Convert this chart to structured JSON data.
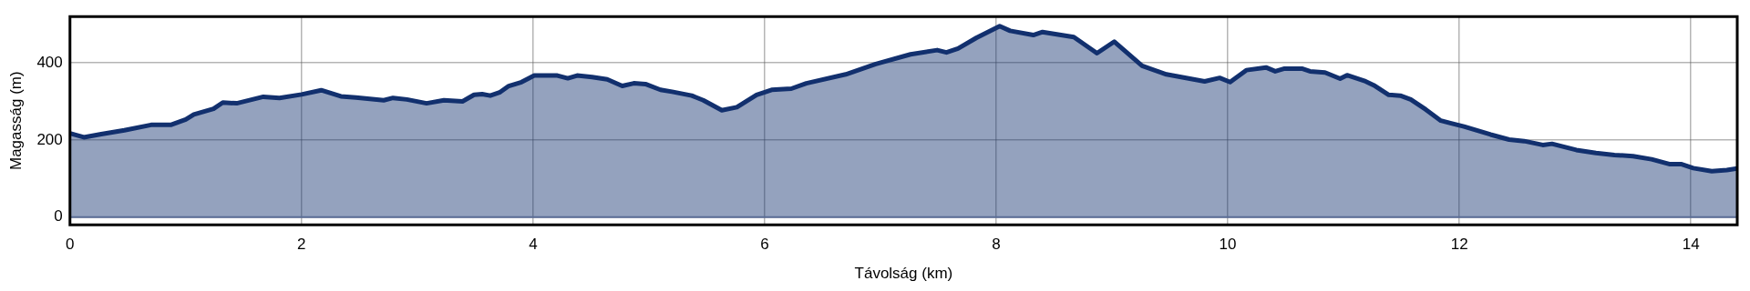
{
  "chart_data": {
    "type": "area",
    "xlabel": "Távolság (km)",
    "ylabel": "Magasság (m)",
    "xlim": [
      0,
      14.4
    ],
    "ylim": [
      -20,
      520
    ],
    "xticks": [
      0,
      2,
      4,
      6,
      8,
      10,
      12,
      14
    ],
    "yticks": [
      0,
      200,
      400
    ],
    "grid": true,
    "legend": false,
    "marker": "none",
    "line_style": "solid",
    "ref_lines": [
      {
        "axis": "y",
        "value": 0,
        "color": "#5a6d96"
      }
    ],
    "series": [
      {
        "color": "#12306e",
        "x": [
          0,
          0.12,
          0.27,
          0.47,
          0.7,
          0.87,
          1.0,
          1.07,
          1.24,
          1.32,
          1.44,
          1.67,
          1.81,
          2.0,
          2.17,
          2.34,
          2.47,
          2.71,
          2.79,
          2.91,
          3.08,
          3.23,
          3.39,
          3.49,
          3.56,
          3.63,
          3.71,
          3.79,
          3.9,
          4.01,
          4.21,
          4.3,
          4.38,
          4.51,
          4.64,
          4.77,
          4.87,
          4.97,
          5.1,
          5.2,
          5.37,
          5.47,
          5.63,
          5.76,
          5.93,
          6.06,
          6.23,
          6.36,
          6.7,
          6.96,
          7.26,
          7.49,
          7.57,
          7.67,
          7.83,
          8.03,
          8.12,
          8.32,
          8.4,
          8.67,
          8.87,
          9.02,
          9.26,
          9.47,
          9.8,
          9.93,
          10.02,
          10.16,
          10.33,
          10.41,
          10.49,
          10.64,
          10.71,
          10.84,
          10.97,
          11.03,
          11.19,
          11.26,
          11.39,
          11.49,
          11.58,
          11.71,
          11.84,
          11.93,
          12.04,
          12.27,
          12.43,
          12.56,
          12.72,
          12.8,
          13.01,
          13.18,
          13.34,
          13.5,
          13.66,
          13.82,
          13.92,
          14.02,
          14.18,
          14.31,
          14.4
        ],
        "values": [
          217,
          207,
          215,
          225,
          239,
          239,
          253,
          266,
          281,
          297,
          295,
          312,
          309,
          318,
          329,
          313,
          310,
          303,
          309,
          305,
          295,
          303,
          300,
          317,
          319,
          315,
          323,
          340,
          350,
          367,
          367,
          360,
          367,
          363,
          357,
          340,
          347,
          345,
          330,
          325,
          315,
          303,
          277,
          285,
          317,
          330,
          333,
          347,
          370,
          397,
          422,
          433,
          427,
          437,
          465,
          495,
          483,
          472,
          480,
          467,
          425,
          455,
          392,
          370,
          352,
          361,
          350,
          381,
          388,
          378,
          385,
          385,
          378,
          375,
          359,
          368,
          352,
          342,
          317,
          315,
          305,
          279,
          250,
          243,
          235,
          214,
          201,
          197,
          187,
          190,
          174,
          166,
          161,
          158,
          150,
          137,
          137,
          127,
          119,
          122,
          126
        ]
      }
    ]
  }
}
